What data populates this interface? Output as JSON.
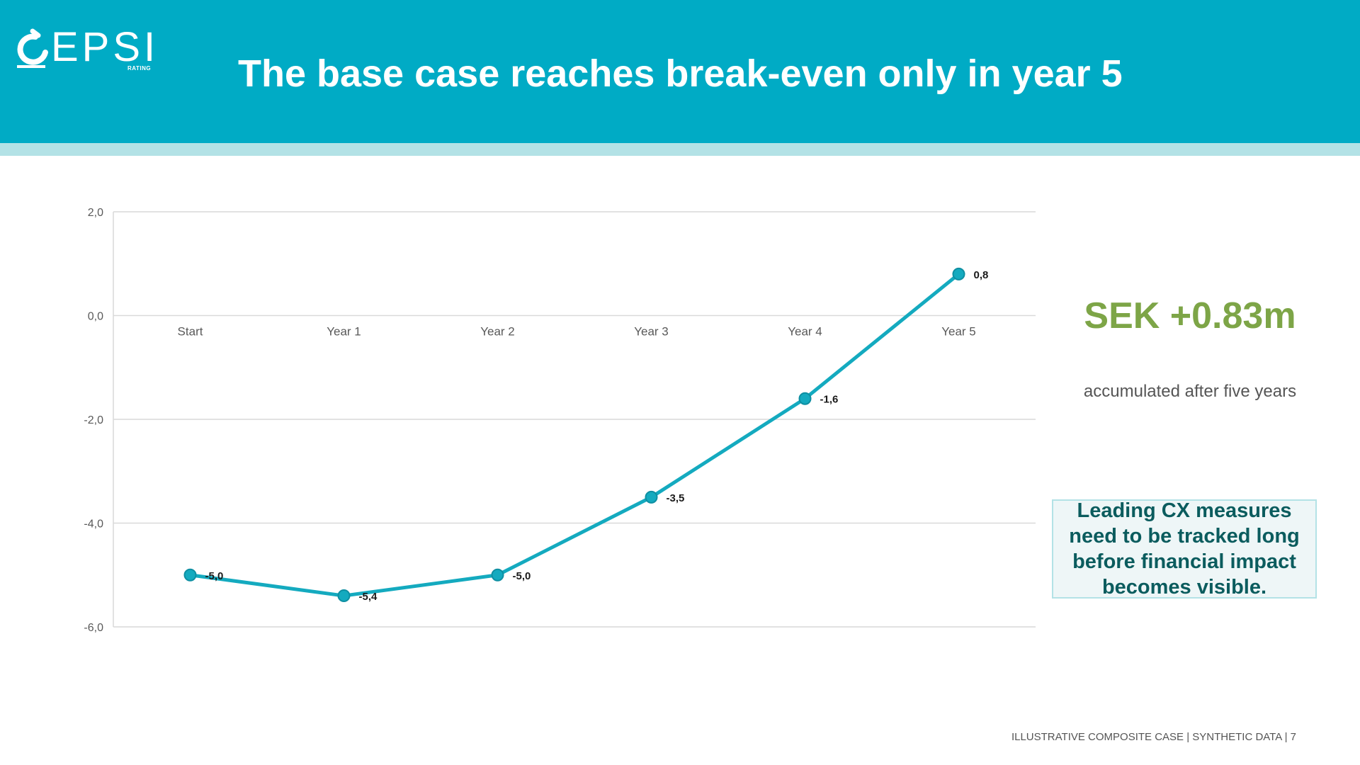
{
  "header": {
    "logo_text": "EPSI",
    "logo_subtext": "RATING",
    "title": "The base case reaches break-even only in year 5"
  },
  "colors": {
    "header_bg": "#00abc5",
    "header_stripe": "#b3e2e6",
    "line": "#14aabf",
    "kpi_green": "#7da547",
    "callout_text": "#0b5c5e"
  },
  "chart_data": {
    "type": "line",
    "categories": [
      "Start",
      "Year 1",
      "Year 2",
      "Year 3",
      "Year 4",
      "Year 5"
    ],
    "series": [
      {
        "values": [
          -5.0,
          -5.4,
          -5.0,
          -3.5,
          -1.6,
          0.8
        ],
        "data_labels": [
          "-5,0",
          "-5,4",
          "-5,0",
          "-3,5",
          "-1,6",
          "0,8"
        ]
      }
    ],
    "ylim": [
      -6,
      2
    ],
    "yticks": [
      2,
      0,
      -2,
      -4,
      -6
    ],
    "ytick_labels": [
      "2,0",
      "0,0",
      "-2,0",
      "-4,0",
      "-6,0"
    ],
    "grid": true,
    "legend": "none"
  },
  "kpi": {
    "value": "SEK +0.83m",
    "caption": "accumulated after five years"
  },
  "callout": {
    "text": "Leading CX measures need to be tracked long before financial impact becomes visible."
  },
  "footer": {
    "text": "ILLUSTRATIVE COMPOSITE CASE | SYNTHETIC DATA | 7"
  }
}
